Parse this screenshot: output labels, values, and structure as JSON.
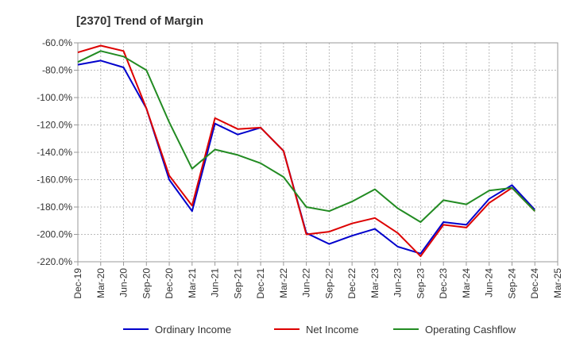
{
  "chart_data": {
    "type": "line",
    "title": "[2370]  Trend of Margin",
    "xlabel": "",
    "ylabel": "",
    "ylim": [
      -220,
      -60
    ],
    "yticks": [
      "-60.0%",
      "-80.0%",
      "-100.0%",
      "-120.0%",
      "-140.0%",
      "-160.0%",
      "-180.0%",
      "-200.0%",
      "-220.0%"
    ],
    "ytick_values": [
      -60,
      -80,
      -100,
      -120,
      -140,
      -160,
      -180,
      -200,
      -220
    ],
    "xticks": [
      "Dec-19",
      "Mar-20",
      "Jun-20",
      "Sep-20",
      "Dec-20",
      "Mar-21",
      "Jun-21",
      "Sep-21",
      "Dec-21",
      "Mar-22",
      "Jun-22",
      "Sep-22",
      "Dec-22",
      "Mar-23",
      "Jun-23",
      "Sep-23",
      "Dec-23",
      "Mar-24",
      "Jun-24",
      "Sep-24",
      "Dec-24",
      "Mar-25"
    ],
    "grid": true,
    "legend_position": "bottom",
    "x": [
      "Dec-19",
      "Mar-20",
      "Jun-20",
      "Sep-20",
      "Dec-20",
      "Mar-21",
      "Jun-21",
      "Sep-21",
      "Dec-21",
      "Mar-22",
      "Jun-22",
      "Sep-22",
      "Dec-22",
      "Mar-23",
      "Jun-23",
      "Sep-23",
      "Dec-23",
      "Mar-24",
      "Jun-24",
      "Sep-24",
      "Dec-24"
    ],
    "series": [
      {
        "name": "Ordinary Income",
        "color": "#0000cc",
        "values": [
          -76,
          -73,
          -78,
          -108,
          -160,
          -183,
          -119,
          -127,
          -122,
          -139,
          -199,
          -207,
          -201,
          -196,
          -209,
          -214,
          -191,
          -193,
          -174,
          -164,
          -182
        ]
      },
      {
        "name": "Net Income",
        "color": "#dd0000",
        "values": [
          -67,
          -62,
          -66,
          -108,
          -157,
          -179,
          -115,
          -123,
          -122,
          -139,
          -200,
          -198,
          -192,
          -188,
          -199,
          -216,
          -193,
          -195,
          -177,
          -166,
          -183
        ]
      },
      {
        "name": "Operating Cashflow",
        "color": "#228b22",
        "values": [
          -74,
          -66,
          -70,
          -80,
          -118,
          -152,
          -138,
          -142,
          -148,
          -158,
          -180,
          -183,
          -176,
          -167,
          -181,
          -191,
          -175,
          -178,
          -168,
          -166,
          -183
        ]
      }
    ]
  }
}
